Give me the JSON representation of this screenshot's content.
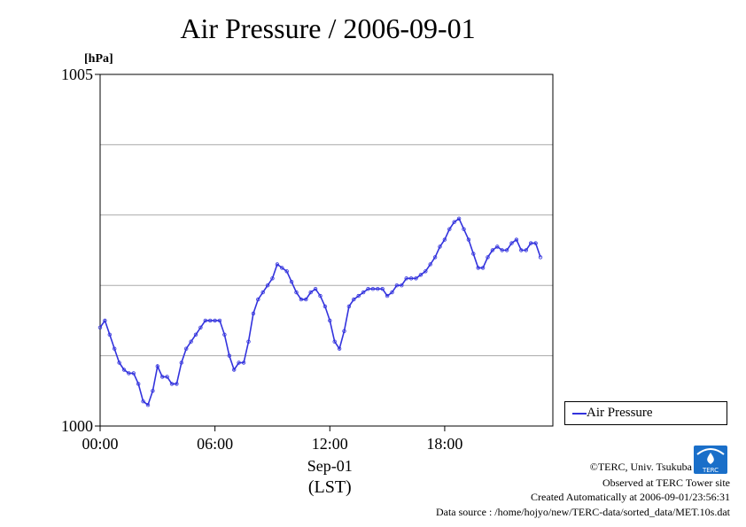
{
  "title": "Air Pressure / 2006-09-01",
  "colors": {
    "series": "#3333dd",
    "grid": "#aaaaaa",
    "logo": "#1a6fc9"
  },
  "legend": {
    "label": "Air Pressure",
    "position": "right-bottom"
  },
  "footer": {
    "copyright": "©TERC, Univ. Tsukuba",
    "site": "Observed at TERC Tower site",
    "created": "Created Automatically at 2006-09-01/23:56:31",
    "source": "Data source : /home/hojyo/new/TERC-data/sorted_data/MET.10s.dat",
    "logo_text": "TERC"
  },
  "chart_data": {
    "type": "line",
    "title": "Air Pressure / 2006-09-01",
    "ylabel": "[hPa]",
    "xlabel": "Sep-01",
    "xlabel2": "(LST)",
    "ylim": [
      1000,
      1005
    ],
    "xlim": [
      0,
      23
    ],
    "yticks": [
      {
        "value": 1000,
        "label": "1000"
      },
      {
        "value": 1005,
        "label": "1005"
      }
    ],
    "xticks": [
      {
        "value": 0,
        "label": "00:00"
      },
      {
        "value": 6,
        "label": "06:00"
      },
      {
        "value": 12,
        "label": "12:00"
      },
      {
        "value": 18,
        "label": "18:00"
      }
    ],
    "grid": true,
    "series": [
      {
        "name": "Air Pressure",
        "x": [
          0.0,
          0.25,
          0.5,
          0.75,
          1.0,
          1.25,
          1.5,
          1.75,
          2.0,
          2.25,
          2.5,
          2.75,
          3.0,
          3.25,
          3.5,
          3.75,
          4.0,
          4.25,
          4.5,
          4.75,
          5.0,
          5.25,
          5.5,
          5.75,
          6.0,
          6.25,
          6.5,
          6.75,
          7.0,
          7.25,
          7.5,
          7.75,
          8.0,
          8.25,
          8.5,
          8.75,
          9.0,
          9.25,
          9.5,
          9.75,
          10.0,
          10.25,
          10.5,
          10.75,
          11.0,
          11.25,
          11.5,
          11.75,
          12.0,
          12.25,
          12.5,
          12.75,
          13.0,
          13.25,
          13.5,
          13.75,
          14.0,
          14.25,
          14.5,
          14.75,
          15.0,
          15.25,
          15.5,
          15.75,
          16.0,
          16.25,
          16.5,
          16.75,
          17.0,
          17.25,
          17.5,
          17.75,
          18.0,
          18.25,
          18.5,
          18.75,
          19.0,
          19.25,
          19.5,
          19.75,
          20.0,
          20.25,
          20.5,
          20.75,
          21.0,
          21.25,
          21.5,
          21.75,
          22.0,
          22.25,
          22.5,
          22.75,
          23.0
        ],
        "y": [
          1001.4,
          1001.5,
          1001.3,
          1001.1,
          1000.9,
          1000.8,
          1000.75,
          1000.75,
          1000.6,
          1000.35,
          1000.3,
          1000.5,
          1000.85,
          1000.7,
          1000.7,
          1000.6,
          1000.6,
          1000.9,
          1001.1,
          1001.2,
          1001.3,
          1001.4,
          1001.5,
          1001.5,
          1001.5,
          1001.5,
          1001.3,
          1001.0,
          1000.8,
          1000.9,
          1000.9,
          1001.2,
          1001.6,
          1001.8,
          1001.9,
          1002.0,
          1002.1,
          1002.3,
          1002.25,
          1002.2,
          1002.05,
          1001.9,
          1001.8,
          1001.8,
          1001.9,
          1001.95,
          1001.85,
          1001.7,
          1001.5,
          1001.2,
          1001.1,
          1001.35,
          1001.7,
          1001.8,
          1001.85,
          1001.9,
          1001.95,
          1001.95,
          1001.95,
          1001.95,
          1001.85,
          1001.9,
          1002.0,
          1002.0,
          1002.1,
          1002.1,
          1002.1,
          1002.15,
          1002.2,
          1002.3,
          1002.4,
          1002.55,
          1002.65,
          1002.8,
          1002.9,
          1002.95,
          1002.8,
          1002.65,
          1002.45,
          1002.25,
          1002.25,
          1002.4,
          1002.5,
          1002.55,
          1002.5,
          1002.5,
          1002.6,
          1002.65,
          1002.5,
          1002.5,
          1002.6,
          1002.6,
          1002.4
        ]
      }
    ]
  }
}
